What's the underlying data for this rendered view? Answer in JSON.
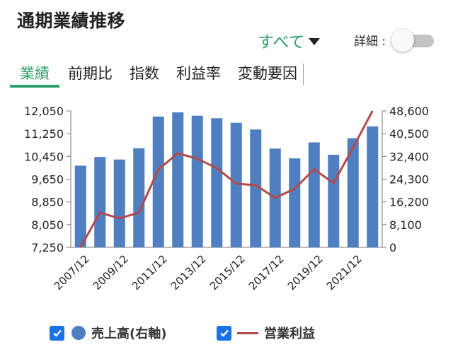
{
  "header": {
    "title": "通期業績推移"
  },
  "filter": {
    "label": "すべて"
  },
  "detail": {
    "label": "詳細 :"
  },
  "tabs": [
    {
      "label": "業績"
    },
    {
      "label": "前期比"
    },
    {
      "label": "指数"
    },
    {
      "label": "利益率"
    },
    {
      "label": "変動要因"
    }
  ],
  "legend": {
    "sales": "売上高(右軸)",
    "profit": "営業利益"
  },
  "colors": {
    "accent": "#2e9e6a",
    "bar": "#4f7fc1",
    "line": "#b34a4a",
    "checkbox": "#1a73e8"
  },
  "chart_data": {
    "type": "bar",
    "categories": [
      "2007/12",
      "2008/12",
      "2009/12",
      "2010/12",
      "2011/12",
      "2012/12",
      "2013/12",
      "2014/12",
      "2015/12",
      "2016/12",
      "2017/12",
      "2018/12",
      "2019/12",
      "2020/12",
      "2021/12",
      "2022/12"
    ],
    "x_tick_labels": [
      "2007/12",
      "2009/12",
      "2011/12",
      "2013/12",
      "2015/12",
      "2017/12",
      "2019/12",
      "2021/12"
    ],
    "left_axis": {
      "ticks": [
        "12,050",
        "11,250",
        "10,450",
        "9,650",
        "8,850",
        "8,050",
        "7,250"
      ],
      "ylim": [
        7250,
        12050
      ]
    },
    "right_axis": {
      "ticks": [
        "48,600",
        "40,500",
        "32,400",
        "24,300",
        "16,200",
        "8,100",
        "0"
      ],
      "ylim": [
        0,
        48600
      ]
    },
    "series": [
      {
        "name": "売上高(右軸)",
        "type": "bar",
        "axis": "right",
        "values": [
          29100,
          32200,
          31300,
          35300,
          46600,
          48100,
          46900,
          46000,
          44400,
          42000,
          35200,
          31700,
          37400,
          33000,
          38900,
          43100
        ]
      },
      {
        "name": "営業利益",
        "type": "line",
        "axis": "left",
        "values": [
          7250,
          8470,
          8270,
          8470,
          9990,
          10560,
          10370,
          10040,
          9490,
          9440,
          8990,
          9310,
          10000,
          9510,
          10760,
          12050
        ]
      }
    ],
    "grid": false,
    "legend_position": "bottom"
  }
}
